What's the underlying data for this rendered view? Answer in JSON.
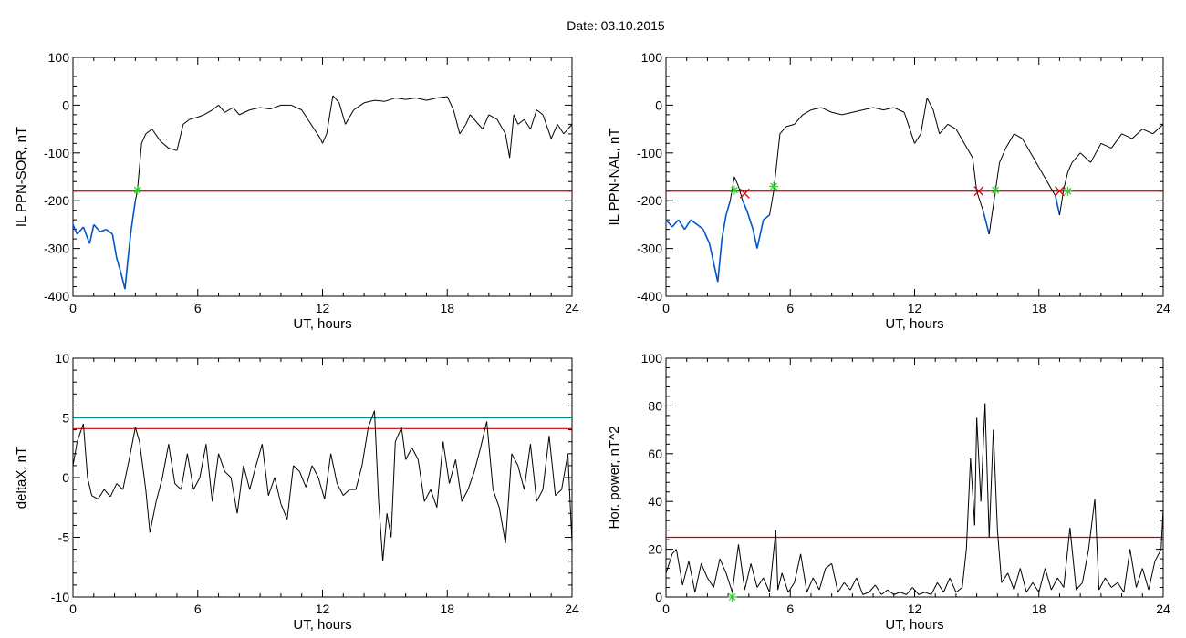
{
  "title": "Date:  03.10.2015",
  "colors": {
    "axis": "#000000",
    "signal": "#000000",
    "threshold": "#cc0000",
    "below": "#0055cc",
    "cyan_line": "#008b8b",
    "green_mark": "#33cc33",
    "red_mark": "#cc0000"
  },
  "chart_data": [
    {
      "type": "line",
      "ylabel": "IL PPN-SOR, nT",
      "xlabel": "UT, hours",
      "xlim": [
        0,
        24
      ],
      "ylim": [
        -400,
        100
      ],
      "xticks": [
        0,
        6,
        12,
        18,
        24
      ],
      "xtick_labels": [
        "0",
        "6",
        "12",
        "18",
        "24"
      ],
      "yticks": [
        -400,
        -300,
        -200,
        -100,
        0,
        100
      ],
      "ytick_labels": [
        "-400",
        "-300",
        "-200",
        "-100",
        "0",
        "100"
      ],
      "thresholds": [
        {
          "y": -180,
          "color": "#cc0000"
        }
      ],
      "series": [
        {
          "x": [
            0,
            0.2,
            0.5,
            0.8,
            1.0,
            1.3,
            1.6,
            1.9,
            2.1,
            2.3,
            2.5,
            2.65,
            2.8,
            3.0,
            3.1,
            3.3,
            3.5,
            3.8,
            4.2,
            4.6,
            5.0,
            5.3,
            5.6,
            6.0,
            6.3,
            6.7,
            7.0,
            7.3,
            7.7,
            8.0,
            8.5,
            9.0,
            9.5,
            10.0,
            10.5,
            11.0,
            11.3,
            11.6,
            11.9,
            12.0,
            12.2,
            12.5,
            12.8,
            13.1,
            13.5,
            14.0,
            14.5,
            15.0,
            15.5,
            16.0,
            16.5,
            17.0,
            17.5,
            18.0,
            18.3,
            18.6,
            18.9,
            19.1,
            19.4,
            19.7,
            20.0,
            20.4,
            20.8,
            21.0,
            21.2,
            21.4,
            21.7,
            22.0,
            22.3,
            22.6,
            23.0,
            23.3,
            23.6,
            24.0
          ],
          "y": [
            -250,
            -270,
            -255,
            -290,
            -250,
            -265,
            -260,
            -270,
            -320,
            -350,
            -385,
            -320,
            -260,
            -200,
            -178,
            -80,
            -60,
            -50,
            -75,
            -90,
            -95,
            -40,
            -30,
            -25,
            -20,
            -10,
            0,
            -15,
            -5,
            -20,
            -10,
            -5,
            -8,
            0,
            0,
            -10,
            -30,
            -50,
            -70,
            -80,
            -60,
            20,
            5,
            -40,
            -10,
            5,
            10,
            8,
            15,
            12,
            15,
            10,
            15,
            18,
            -10,
            -60,
            -40,
            -20,
            -35,
            -50,
            -20,
            -30,
            -60,
            -110,
            -20,
            -40,
            -30,
            -50,
            -10,
            -20,
            -70,
            -40,
            -60,
            -40
          ]
        }
      ],
      "markers": [
        {
          "x": 3.1,
          "y": -178,
          "symbol": "*",
          "color": "#33cc33"
        }
      ]
    },
    {
      "type": "line",
      "ylabel": "IL PPN-NAL, nT",
      "xlabel": "UT, hours",
      "xlim": [
        0,
        24
      ],
      "ylim": [
        -400,
        100
      ],
      "xticks": [
        0,
        6,
        12,
        18,
        24
      ],
      "xtick_labels": [
        "0",
        "6",
        "12",
        "18",
        "24"
      ],
      "yticks": [
        -400,
        -300,
        -200,
        -100,
        0,
        100
      ],
      "ytick_labels": [
        "-400",
        "-300",
        "-200",
        "-100",
        "0",
        "100"
      ],
      "thresholds": [
        {
          "y": -180,
          "color": "#cc0000"
        }
      ],
      "series": [
        {
          "x": [
            0,
            0.3,
            0.6,
            0.9,
            1.2,
            1.5,
            1.8,
            2.1,
            2.3,
            2.5,
            2.7,
            2.9,
            3.1,
            3.3,
            3.5,
            3.7,
            3.9,
            4.2,
            4.4,
            4.7,
            5.0,
            5.2,
            5.5,
            5.8,
            6.2,
            6.6,
            7.0,
            7.5,
            8.0,
            8.5,
            9.0,
            9.5,
            10.0,
            10.5,
            11.0,
            11.5,
            12.0,
            12.3,
            12.6,
            12.9,
            13.2,
            13.6,
            14.0,
            14.4,
            14.8,
            15.0,
            15.3,
            15.6,
            15.9,
            16.1,
            16.4,
            16.8,
            17.2,
            17.6,
            18.0,
            18.4,
            18.8,
            19.0,
            19.2,
            19.4,
            19.6,
            20.0,
            20.5,
            21.0,
            21.5,
            22.0,
            22.5,
            23.0,
            23.5,
            24.0
          ],
          "y": [
            -240,
            -255,
            -240,
            -260,
            -240,
            -250,
            -260,
            -290,
            -330,
            -370,
            -280,
            -230,
            -200,
            -150,
            -170,
            -200,
            -220,
            -260,
            -300,
            -240,
            -230,
            -180,
            -60,
            -45,
            -40,
            -20,
            -10,
            -5,
            -15,
            -20,
            -15,
            -10,
            -5,
            -10,
            -5,
            -15,
            -80,
            -60,
            15,
            -10,
            -60,
            -40,
            -50,
            -80,
            -110,
            -180,
            -220,
            -270,
            -180,
            -120,
            -90,
            -60,
            -70,
            -100,
            -130,
            -160,
            -190,
            -230,
            -175,
            -140,
            -120,
            -100,
            -120,
            -80,
            -90,
            -60,
            -70,
            -50,
            -60,
            -40
          ]
        }
      ],
      "markers": [
        {
          "x": 3.3,
          "y": -178,
          "symbol": "*",
          "color": "#33cc33"
        },
        {
          "x": 3.8,
          "y": -185,
          "symbol": "x",
          "color": "#cc0000"
        },
        {
          "x": 5.2,
          "y": -170,
          "symbol": "*",
          "color": "#33cc33"
        },
        {
          "x": 15.1,
          "y": -180,
          "symbol": "x",
          "color": "#cc0000"
        },
        {
          "x": 15.9,
          "y": -178,
          "symbol": "*",
          "color": "#33cc33"
        },
        {
          "x": 19.0,
          "y": -180,
          "symbol": "x",
          "color": "#cc0000"
        },
        {
          "x": 19.4,
          "y": -180,
          "symbol": "*",
          "color": "#33cc33"
        }
      ]
    },
    {
      "type": "line",
      "ylabel": "deltaX, nT",
      "xlabel": "UT, hours",
      "xlim": [
        0,
        24
      ],
      "ylim": [
        -10,
        10
      ],
      "xticks": [
        0,
        6,
        12,
        18,
        24
      ],
      "xtick_labels": [
        "0",
        "6",
        "12",
        "18",
        "24"
      ],
      "yticks": [
        -10,
        -5,
        0,
        5,
        10
      ],
      "ytick_labels": [
        "-10",
        "-5",
        "0",
        "5",
        "10"
      ],
      "thresholds": [
        {
          "y": 5.0,
          "color": "#008b8b"
        },
        {
          "y": 4.1,
          "color": "#cc0000"
        }
      ],
      "series": [
        {
          "x": [
            0,
            0.2,
            0.5,
            0.7,
            0.9,
            1.2,
            1.5,
            1.8,
            2.1,
            2.4,
            2.7,
            3.0,
            3.2,
            3.5,
            3.7,
            4.0,
            4.3,
            4.6,
            4.9,
            5.2,
            5.5,
            5.8,
            6.1,
            6.4,
            6.7,
            7.0,
            7.3,
            7.6,
            7.9,
            8.2,
            8.5,
            8.8,
            9.1,
            9.4,
            9.7,
            10.0,
            10.3,
            10.6,
            10.9,
            11.2,
            11.5,
            11.8,
            12.1,
            12.4,
            12.7,
            13.0,
            13.3,
            13.6,
            13.9,
            14.2,
            14.5,
            14.7,
            14.9,
            15.1,
            15.3,
            15.5,
            15.8,
            16.0,
            16.3,
            16.6,
            16.9,
            17.2,
            17.5,
            17.8,
            18.1,
            18.4,
            18.7,
            19.0,
            19.3,
            19.6,
            19.9,
            20.2,
            20.5,
            20.8,
            21.1,
            21.4,
            21.7,
            22.0,
            22.3,
            22.6,
            22.9,
            23.2,
            23.5,
            23.8,
            24.0
          ],
          "y": [
            1,
            3,
            4.5,
            0,
            -1.5,
            -1.8,
            -1,
            -1.6,
            -0.5,
            -1,
            1.5,
            4.2,
            3,
            -1,
            -4.6,
            -2,
            0,
            2.8,
            -0.5,
            -1,
            2,
            -1,
            0,
            2.8,
            -2,
            2,
            0.5,
            0,
            -3,
            1,
            -1,
            1,
            2.8,
            -1.5,
            0,
            -2.2,
            -3.5,
            1,
            0.5,
            -0.8,
            1,
            0,
            -1.8,
            2,
            -0.5,
            -1.5,
            -1,
            -1,
            1,
            4.2,
            5.6,
            -2,
            -7,
            -3,
            -5,
            3,
            4.2,
            1.5,
            2.5,
            1.5,
            -2,
            -1,
            -2.5,
            3,
            -0.5,
            1.5,
            -2,
            -1,
            0.5,
            2.5,
            4.7,
            -1,
            -2.5,
            -5.5,
            2,
            1,
            -1,
            2.8,
            -2,
            -1,
            3.5,
            -1.5,
            -1,
            2,
            -5.5
          ]
        }
      ],
      "markers": []
    },
    {
      "type": "line",
      "ylabel": "Hor. power, nT^2",
      "xlabel": "UT, hours",
      "xlim": [
        0,
        24
      ],
      "ylim": [
        0,
        100
      ],
      "xticks": [
        0,
        6,
        12,
        18,
        24
      ],
      "xtick_labels": [
        "0",
        "6",
        "12",
        "18",
        "24"
      ],
      "yticks": [
        0,
        20,
        40,
        60,
        80,
        100
      ],
      "ytick_labels": [
        "0",
        "20",
        "40",
        "60",
        "80",
        "100"
      ],
      "thresholds": [
        {
          "y": 25,
          "color": "#cc0000"
        }
      ],
      "series": [
        {
          "x": [
            0,
            0.3,
            0.5,
            0.8,
            1.1,
            1.4,
            1.7,
            2.0,
            2.3,
            2.6,
            2.9,
            3.2,
            3.5,
            3.8,
            4.1,
            4.4,
            4.7,
            5.0,
            5.3,
            5.4,
            5.6,
            5.9,
            6.2,
            6.5,
            6.8,
            7.1,
            7.4,
            7.7,
            8.0,
            8.3,
            8.6,
            8.9,
            9.2,
            9.5,
            9.8,
            10.1,
            10.4,
            10.7,
            11.0,
            11.3,
            11.6,
            11.9,
            12.2,
            12.5,
            12.8,
            13.1,
            13.4,
            13.7,
            14.0,
            14.3,
            14.5,
            14.7,
            14.9,
            15.0,
            15.2,
            15.4,
            15.6,
            15.8,
            16.0,
            16.2,
            16.5,
            16.8,
            17.1,
            17.4,
            17.7,
            18.0,
            18.3,
            18.6,
            18.9,
            19.2,
            19.5,
            19.8,
            20.1,
            20.4,
            20.7,
            20.9,
            21.2,
            21.5,
            21.8,
            22.1,
            22.4,
            22.7,
            23.0,
            23.3,
            23.6,
            23.9,
            24.0
          ],
          "y": [
            10,
            18,
            20,
            5,
            15,
            2,
            14,
            8,
            4,
            16,
            10,
            2,
            22,
            3,
            14,
            4,
            8,
            2,
            28,
            3,
            10,
            2,
            6,
            18,
            2,
            8,
            3,
            12,
            14,
            2,
            6,
            3,
            8,
            1,
            2,
            5,
            1,
            3,
            1,
            2,
            1,
            4,
            1,
            2,
            1,
            6,
            2,
            8,
            2,
            4,
            20,
            58,
            30,
            75,
            40,
            81,
            25,
            70,
            28,
            6,
            10,
            3,
            12,
            2,
            6,
            2,
            12,
            3,
            8,
            4,
            29,
            3,
            6,
            20,
            41,
            3,
            8,
            4,
            6,
            2,
            20,
            4,
            12,
            3,
            15,
            20,
            37
          ]
        }
      ],
      "markers": [
        {
          "x": 3.2,
          "y": 0,
          "symbol": "*",
          "color": "#33cc33"
        }
      ]
    }
  ]
}
